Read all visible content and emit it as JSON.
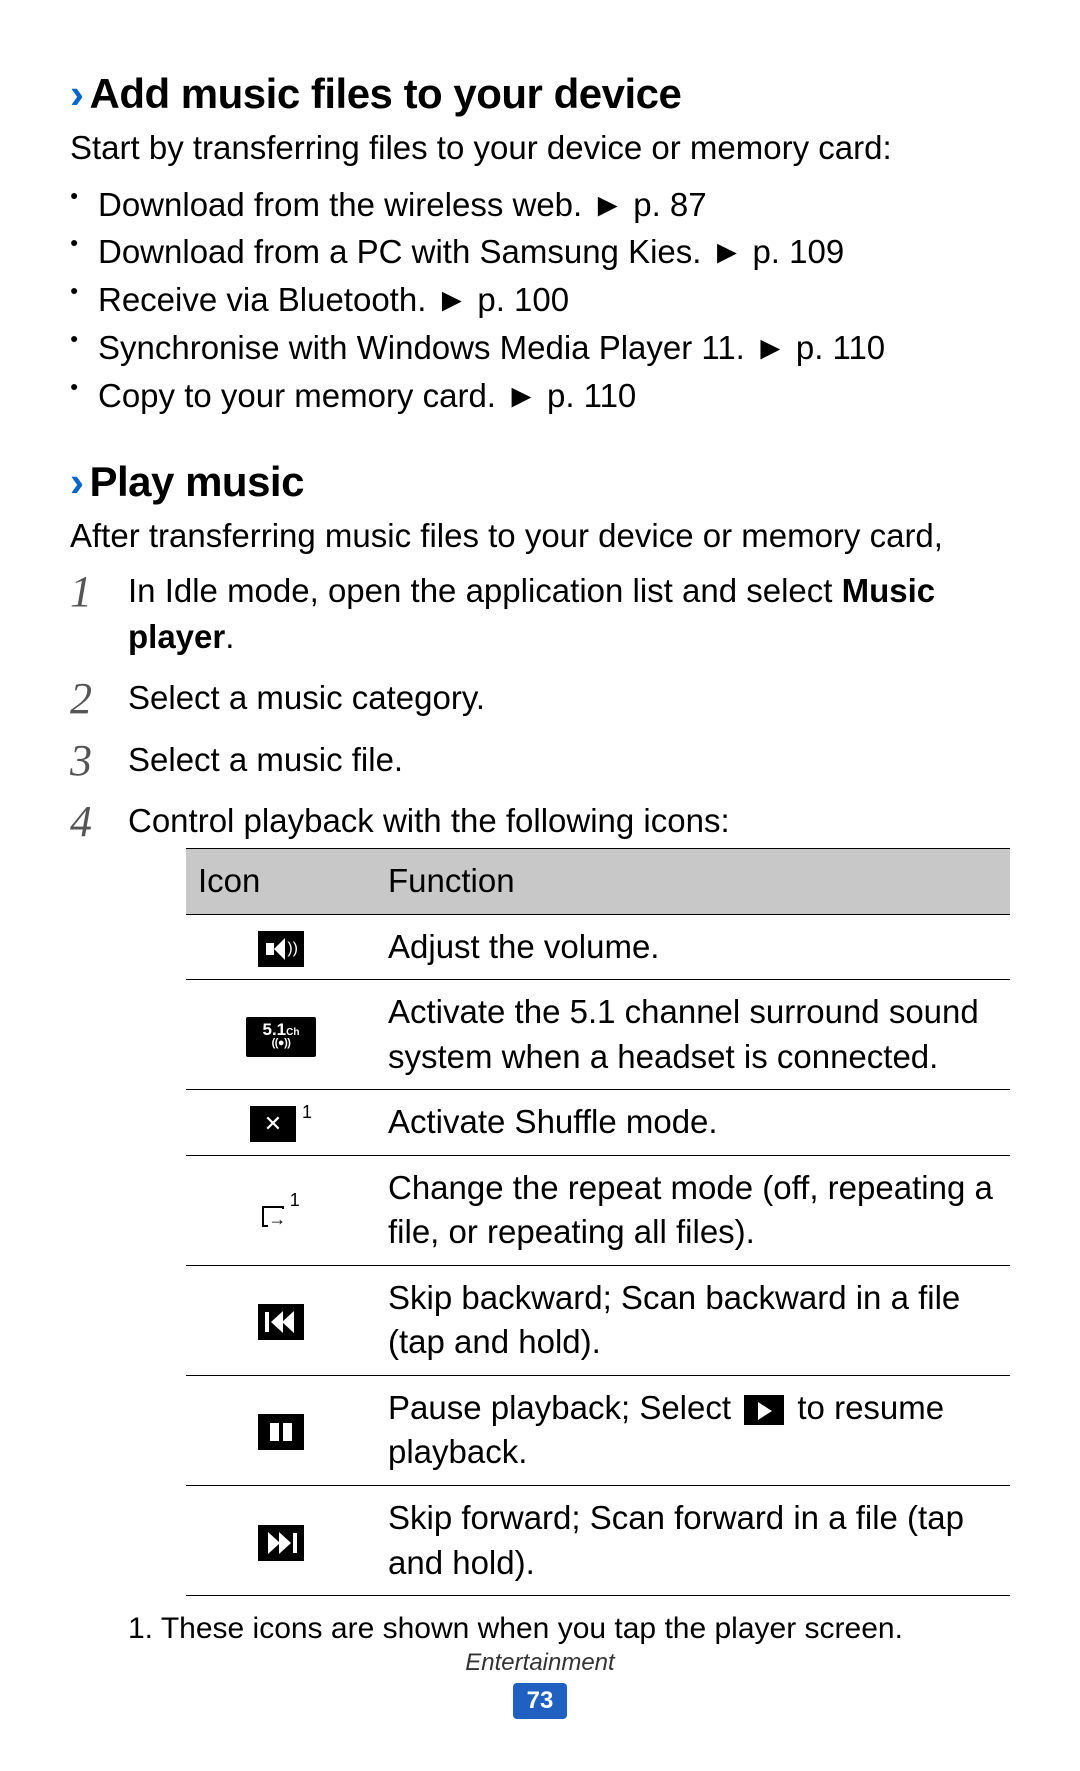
{
  "colors": {
    "accent_blue": "#0066cc",
    "page_badge_bg": "#2060c0",
    "table_header_bg": "#c8c8c8"
  },
  "section1": {
    "heading": "Add music files to your device",
    "intro": "Start by transferring files to your device or memory card:",
    "bullets": [
      {
        "text": "Download from the wireless web.",
        "pref": "► p. 87"
      },
      {
        "text": "Download from a PC with Samsung Kies.",
        "pref": "► p. 109"
      },
      {
        "text": "Receive via Bluetooth.",
        "pref": "► p. 100"
      },
      {
        "text": "Synchronise with Windows Media Player 11.",
        "pref": "► p. 110"
      },
      {
        "text": "Copy to your memory card.",
        "pref": "► p. 110"
      }
    ]
  },
  "section2": {
    "heading": "Play music",
    "intro": "After transferring music files to your device or memory card,",
    "steps": {
      "s1a": "In Idle mode, open the application list and select ",
      "s1b": "Music player",
      "s1c": ".",
      "s2": "Select a music category.",
      "s3": "Select a music file.",
      "s4": "Control playback with the following icons:"
    }
  },
  "table": {
    "col_icon": "Icon",
    "col_func": "Function",
    "rows": {
      "volume": "Adjust the volume.",
      "surround": "Activate the 5.1 channel surround sound system when a headset is connected.",
      "shuffle": "Activate Shuffle mode.",
      "repeat": "Change the repeat mode (off, repeating a file, or repeating all files).",
      "prev": "Skip backward; Scan backward in a file (tap and hold).",
      "pause_a": "Pause playback; Select ",
      "pause_b": " to resume playback.",
      "next": "Skip forward; Scan forward in a file (tap and hold)."
    },
    "sup": "1"
  },
  "footnote": "1.  These icons are shown when you tap the player screen.",
  "footer": {
    "category": "Entertainment",
    "page": "73"
  }
}
